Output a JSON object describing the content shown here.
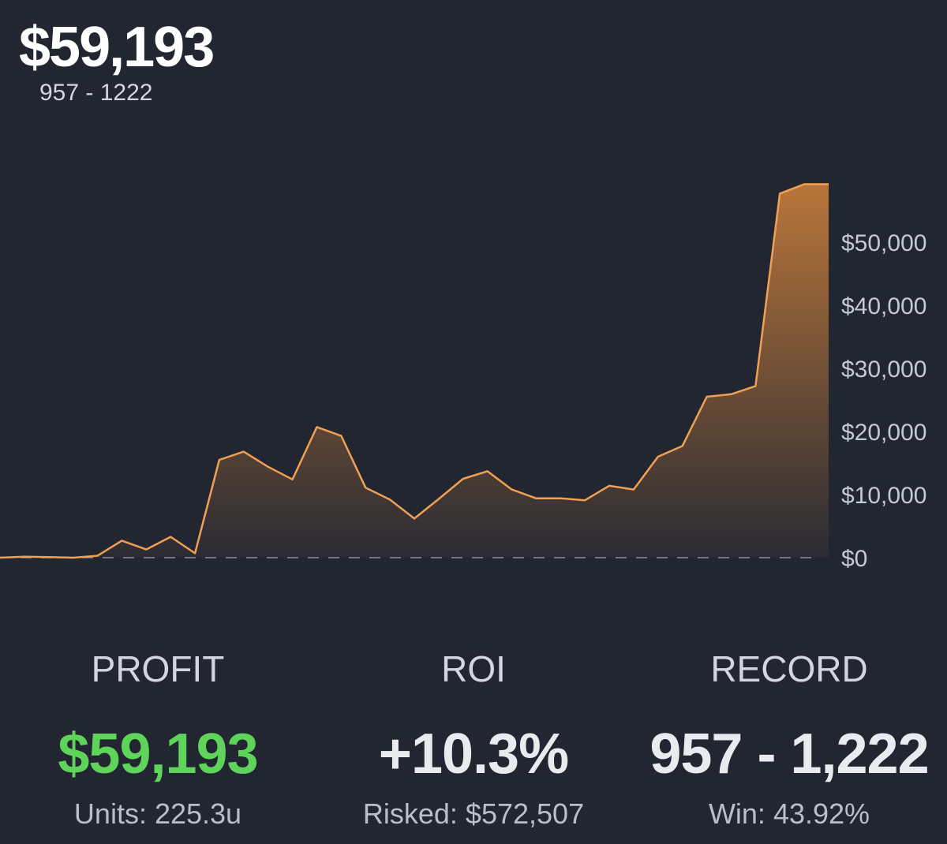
{
  "header": {
    "total": "$59,193",
    "record": "957 - 1222"
  },
  "chart_data": {
    "type": "area",
    "title": "",
    "xlabel": "",
    "ylabel": "",
    "ylim": [
      0,
      60000
    ],
    "y_ticks": [
      0,
      10000,
      20000,
      30000,
      40000,
      50000
    ],
    "y_tick_labels": [
      "$0",
      "$10,000",
      "$20,000",
      "$30,000",
      "$40,000",
      "$50,000"
    ],
    "grid": false,
    "baseline_dashed": true,
    "line_color": "#f0a055",
    "fill_top_color": "#b8753a",
    "fill_bottom_color": "#2a2b33",
    "series": [
      {
        "values": [
          0,
          150,
          100,
          0,
          300,
          2700,
          1300,
          3300,
          700,
          15500,
          16800,
          14400,
          12400,
          20700,
          19300,
          11100,
          9200,
          6200,
          9300,
          12500,
          13700,
          10800,
          9400,
          9400,
          9100,
          11400,
          10800,
          16000,
          17700,
          25500,
          25900,
          27200,
          57700,
          59193,
          59193
        ]
      }
    ]
  },
  "stats": {
    "profit": {
      "label": "PROFIT",
      "value": "$59,193",
      "sub": "Units: 225.3u",
      "color": "#5ed45a"
    },
    "roi": {
      "label": "ROI",
      "value": "+10.3%",
      "sub": "Risked: $572,507",
      "color": "#e9ebef"
    },
    "record": {
      "label": "RECORD",
      "value": "957 - 1,222",
      "sub": "Win: 43.92%",
      "color": "#e9ebef"
    }
  }
}
